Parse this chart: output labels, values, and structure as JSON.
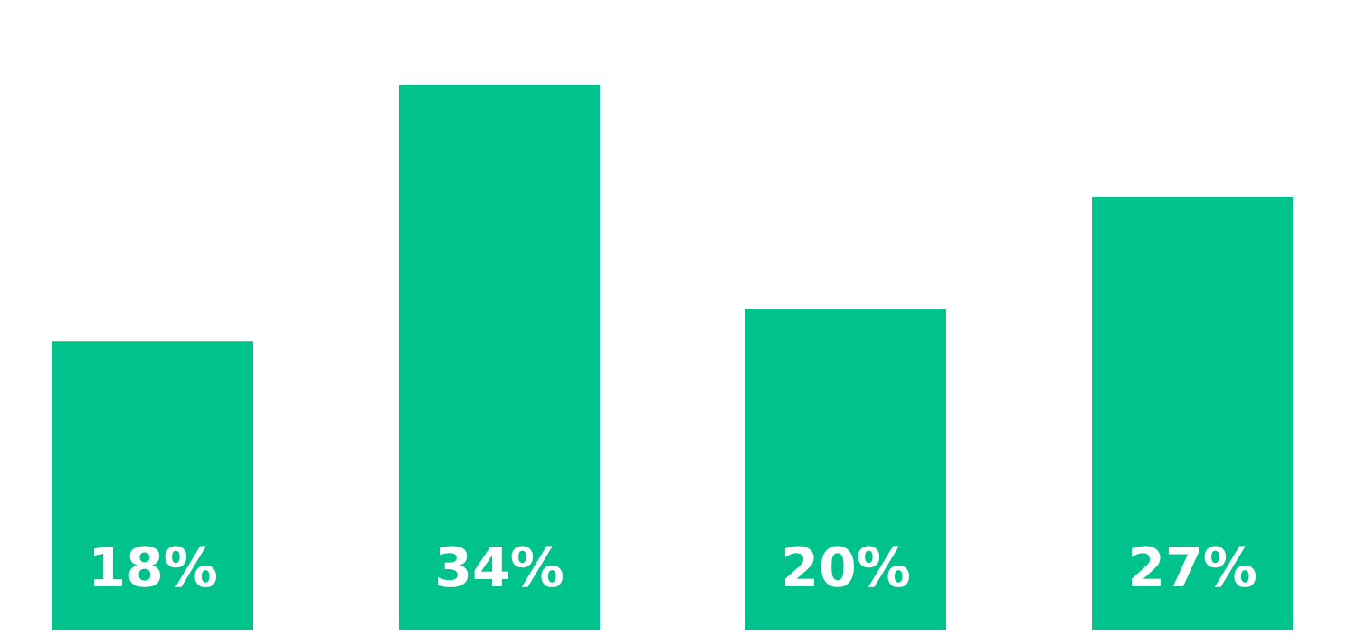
{
  "chart_data": {
    "type": "bar",
    "categories": [
      null,
      null,
      null,
      null
    ],
    "values": [
      18,
      34,
      20,
      27
    ],
    "color": "#00c28c",
    "value_labels": [
      "18%",
      "34%",
      "20%",
      "27%"
    ],
    "grid": false,
    "legend": false,
    "tick_labels": false
  }
}
